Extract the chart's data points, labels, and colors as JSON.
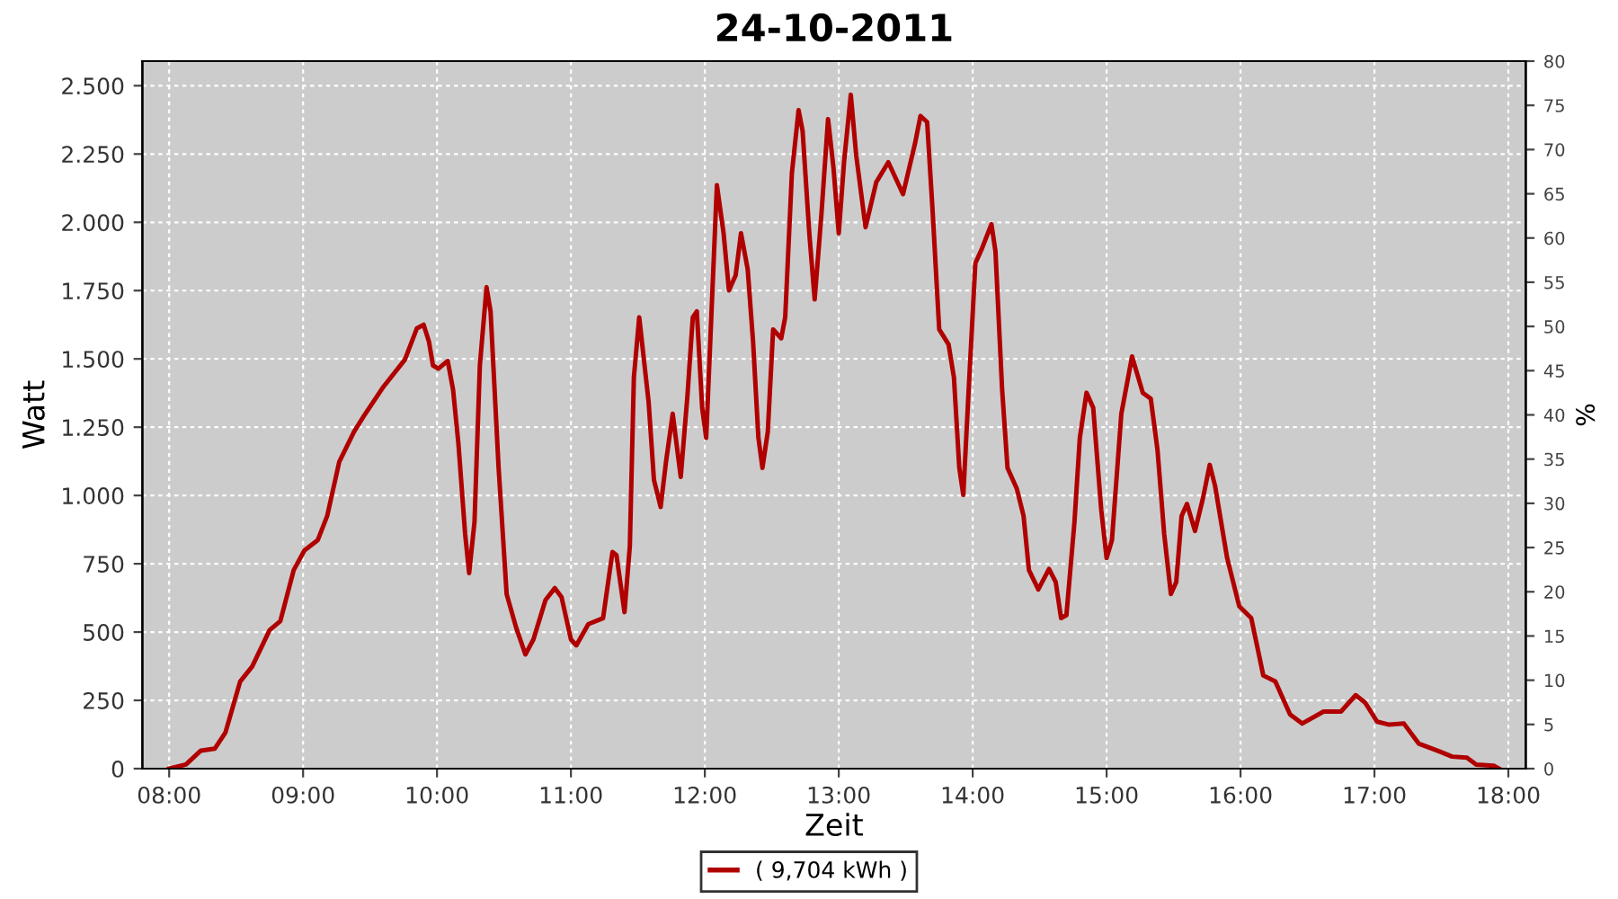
{
  "chart_data": {
    "type": "line",
    "title": "24-10-2011",
    "xlabel": "Zeit",
    "ylabel": "Watt",
    "y2label": "%",
    "xlim": [
      7.8,
      18.13
    ],
    "ylim": [
      0,
      2590
    ],
    "y2lim": [
      0,
      80
    ],
    "xticks": [
      {
        "value": 8,
        "label": "08:00"
      },
      {
        "value": 9,
        "label": "09:00"
      },
      {
        "value": 10,
        "label": "10:00"
      },
      {
        "value": 11,
        "label": "11:00"
      },
      {
        "value": 12,
        "label": "12:00"
      },
      {
        "value": 13,
        "label": "13:00"
      },
      {
        "value": 14,
        "label": "14:00"
      },
      {
        "value": 15,
        "label": "15:00"
      },
      {
        "value": 16,
        "label": "16:00"
      },
      {
        "value": 17,
        "label": "17:00"
      },
      {
        "value": 18,
        "label": "18:00"
      }
    ],
    "yticks": [
      0,
      250,
      500,
      750,
      {
        "value": 1000,
        "label": "1.000"
      },
      {
        "value": 1250,
        "label": "1.250"
      },
      {
        "value": 1500,
        "label": "1.500"
      },
      {
        "value": 1750,
        "label": "1.750"
      },
      {
        "value": 2000,
        "label": "2.000"
      },
      {
        "value": 2250,
        "label": "2.250"
      },
      {
        "value": 2500,
        "label": "2.500"
      }
    ],
    "y2ticks": [
      0,
      5,
      10,
      15,
      20,
      25,
      30,
      35,
      40,
      45,
      50,
      55,
      60,
      65,
      70,
      75,
      80
    ],
    "grid": true,
    "legend": "bottom",
    "marker": "none",
    "line_style": "solid",
    "series": [
      {
        "name": "( 9,704 kWh )",
        "color": "#b00000",
        "x": [
          8.0,
          8.125,
          8.237,
          8.34,
          8.42,
          8.53,
          8.62,
          8.75,
          8.83,
          8.93,
          9.01,
          9.11,
          9.18,
          9.27,
          9.38,
          9.45,
          9.6,
          9.76,
          9.85,
          9.9,
          9.94,
          9.97,
          10.01,
          10.08,
          10.12,
          10.16,
          10.21,
          10.24,
          10.28,
          10.32,
          10.37,
          10.4,
          10.46,
          10.52,
          10.59,
          10.66,
          10.72,
          10.81,
          10.88,
          10.93,
          11.0,
          11.04,
          11.13,
          11.24,
          11.31,
          11.34,
          11.4,
          11.44,
          11.47,
          11.51,
          11.58,
          11.62,
          11.67,
          11.71,
          11.76,
          11.82,
          11.87,
          11.91,
          11.94,
          11.98,
          12.01,
          12.05,
          12.09,
          12.14,
          12.18,
          12.23,
          12.27,
          12.32,
          12.36,
          12.4,
          12.43,
          12.47,
          12.51,
          12.57,
          12.6,
          12.65,
          12.7,
          12.73,
          12.78,
          12.82,
          12.87,
          12.92,
          12.96,
          13.0,
          13.04,
          13.09,
          13.13,
          13.2,
          13.28,
          13.37,
          13.48,
          13.57,
          13.61,
          13.66,
          13.7,
          13.75,
          13.82,
          13.86,
          13.9,
          13.93,
          13.97,
          14.02,
          14.07,
          14.14,
          14.17,
          14.22,
          14.26,
          14.33,
          14.38,
          14.42,
          14.49,
          14.57,
          14.62,
          14.66,
          14.7,
          14.76,
          14.8,
          14.85,
          14.9,
          14.96,
          15.0,
          15.04,
          15.11,
          15.19,
          15.27,
          15.33,
          15.38,
          15.43,
          15.48,
          15.52,
          15.56,
          15.6,
          15.66,
          15.72,
          15.77,
          15.81,
          15.9,
          15.99,
          16.08,
          16.17,
          16.26,
          16.37,
          16.46,
          16.62,
          16.75,
          16.86,
          16.93,
          17.02,
          17.11,
          17.22,
          17.33,
          17.49,
          17.58,
          17.69,
          17.76,
          17.89,
          17.93
        ],
        "values": [
          0,
          15,
          66,
          73,
          132,
          319,
          374,
          507,
          540,
          727,
          799,
          837,
          925,
          1123,
          1233,
          1288,
          1398,
          1497,
          1612,
          1625,
          1563,
          1476,
          1464,
          1493,
          1387,
          1189,
          859,
          716,
          903,
          1476,
          1762,
          1674,
          1101,
          639,
          518,
          418,
          473,
          617,
          661,
          628,
          473,
          451,
          529,
          551,
          793,
          782,
          573,
          815,
          1432,
          1652,
          1343,
          1057,
          958,
          1123,
          1299,
          1068,
          1365,
          1652,
          1674,
          1321,
          1211,
          1674,
          2136,
          1960,
          1751,
          1806,
          1960,
          1828,
          1564,
          1211,
          1101,
          1233,
          1608,
          1575,
          1652,
          2180,
          2411,
          2334,
          1960,
          1718,
          2026,
          2378,
          2202,
          1960,
          2224,
          2467,
          2246,
          1982,
          2147,
          2220,
          2103,
          2290,
          2389,
          2367,
          2048,
          1608,
          1553,
          1432,
          1101,
          1002,
          1387,
          1850,
          1905,
          1993,
          1894,
          1387,
          1101,
          1024,
          925,
          727,
          656,
          731,
          683,
          551,
          562,
          903,
          1211,
          1376,
          1321,
          947,
          771,
          837,
          1299,
          1509,
          1376,
          1354,
          1167,
          859,
          639,
          683,
          925,
          969,
          870,
          991,
          1112,
          1035,
          771,
          595,
          551,
          341,
          319,
          198,
          165,
          209,
          209,
          269,
          242,
          172,
          161,
          165,
          92,
          62,
          44,
          40,
          15,
          11,
          0
        ]
      }
    ]
  }
}
